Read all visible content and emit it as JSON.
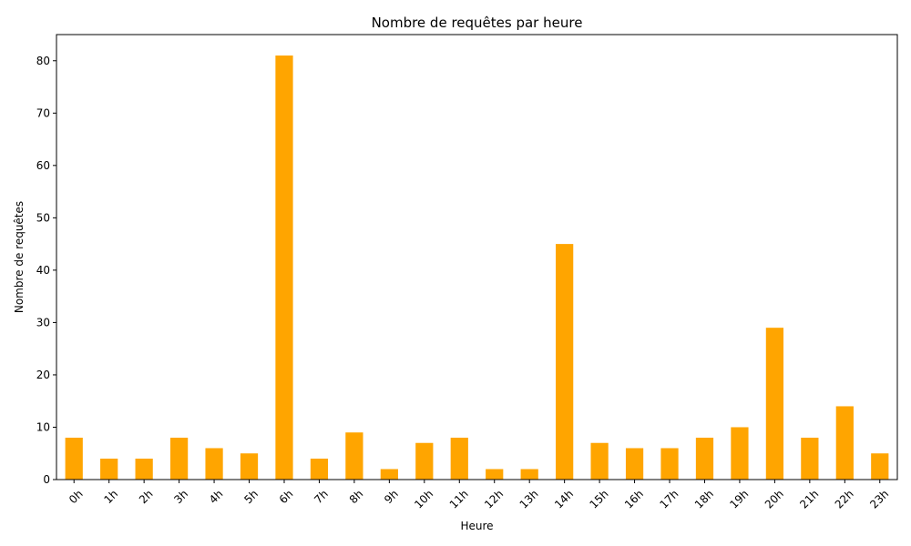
{
  "chart_data": {
    "type": "bar",
    "title": "Nombre de requêtes par heure",
    "xlabel": "Heure",
    "ylabel": "Nombre de requêtes",
    "categories": [
      "0h",
      "1h",
      "2h",
      "3h",
      "4h",
      "5h",
      "6h",
      "7h",
      "8h",
      "9h",
      "10h",
      "11h",
      "12h",
      "13h",
      "14h",
      "15h",
      "16h",
      "17h",
      "18h",
      "19h",
      "20h",
      "21h",
      "22h",
      "23h"
    ],
    "values": [
      8,
      4,
      4,
      8,
      6,
      5,
      81,
      4,
      9,
      2,
      7,
      8,
      2,
      2,
      45,
      7,
      6,
      6,
      8,
      10,
      29,
      8,
      14,
      5
    ],
    "ylim": [
      0,
      85
    ],
    "yticks": [
      0,
      10,
      20,
      30,
      40,
      50,
      60,
      70,
      80
    ],
    "bar_color": "#ffa500",
    "grid": false,
    "legend": "none"
  }
}
